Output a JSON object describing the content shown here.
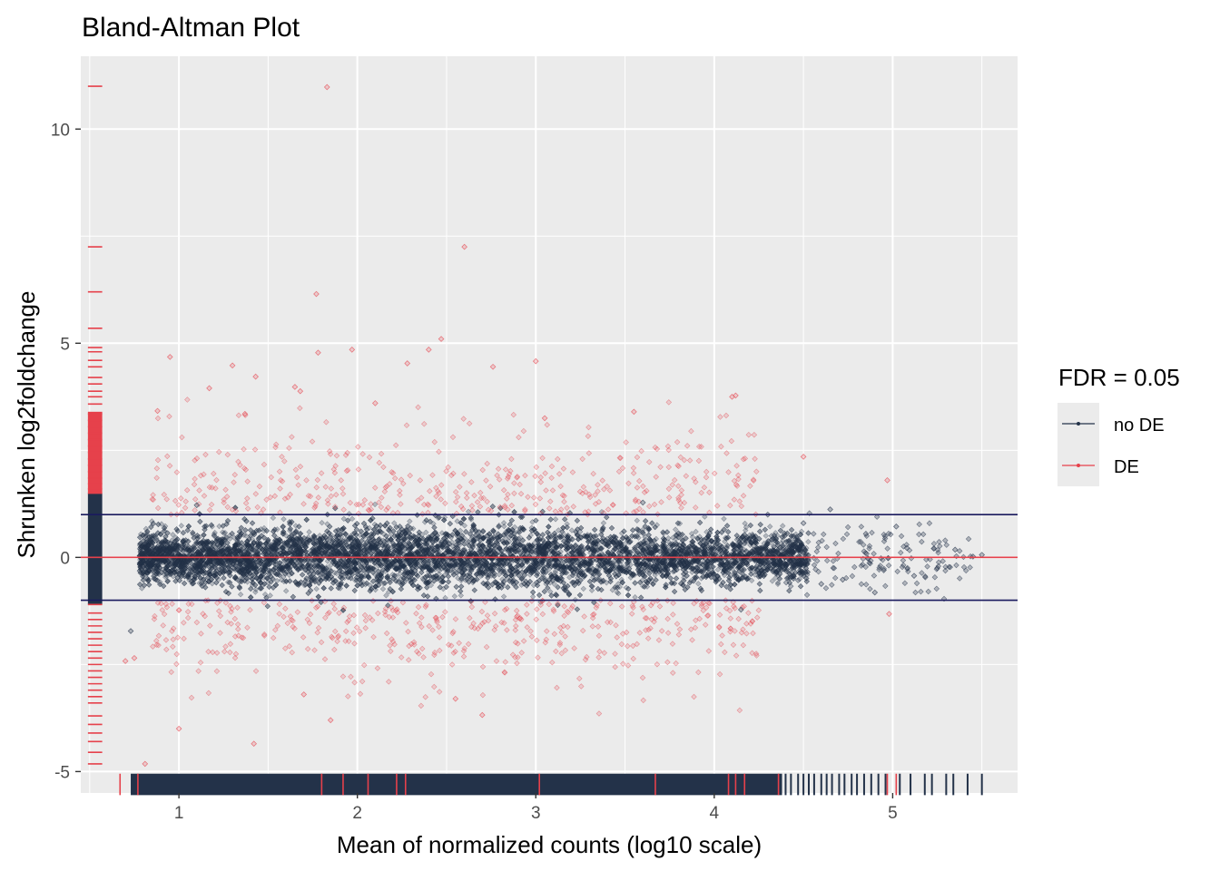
{
  "chart_data": {
    "type": "scatter",
    "title": "Bland-Altman Plot",
    "xlabel": "Mean of normalized counts (log10 scale)",
    "ylabel": "Shrunken log2foldchange",
    "xlim": [
      0.45,
      5.7
    ],
    "ylim": [
      -5.5,
      11.7
    ],
    "x_ticks": [
      1,
      2,
      3,
      4,
      5
    ],
    "x_tick_labels": [
      "1",
      "2",
      "3",
      "4",
      "5"
    ],
    "y_ticks": [
      -5,
      0,
      5,
      10
    ],
    "y_tick_labels": [
      "-5",
      "0",
      "5",
      "10"
    ],
    "grid": true,
    "reference_lines": [
      {
        "y": 1,
        "color": "#1a1a5e"
      },
      {
        "y": -1,
        "color": "#1a1a5e"
      },
      {
        "y": 0,
        "color": "#e6414b"
      }
    ],
    "legend": {
      "title": "FDR = 0.05",
      "position": "right",
      "entries": [
        {
          "label": "no DE",
          "color": "#233249"
        },
        {
          "label": "DE",
          "color": "#e6414b"
        }
      ]
    },
    "series": [
      {
        "name": "no DE",
        "color": "#233249",
        "notable_points": [
          [
            0.73,
            -1.72
          ],
          [
            0.78,
            0.04
          ],
          [
            1.1,
            1.22
          ],
          [
            3.6,
            1.28
          ],
          [
            4.3,
            1.0
          ],
          [
            4.65,
            1.12
          ],
          [
            4.6,
            -0.62
          ],
          [
            4.72,
            -0.52
          ],
          [
            4.9,
            -0.82
          ],
          [
            5.02,
            0.72
          ],
          [
            5.08,
            0.22
          ],
          [
            5.12,
            -0.43
          ],
          [
            5.25,
            -0.25
          ],
          [
            5.35,
            0.18
          ],
          [
            5.45,
            0.02
          ],
          [
            5.5,
            0.06
          ],
          [
            4.5,
            0.8
          ],
          [
            4.85,
            0.55
          ],
          [
            4.95,
            -0.3
          ],
          [
            4.15,
            -1.22
          ]
        ]
      },
      {
        "name": "DE",
        "color": "#e6414b",
        "notable_points": [
          [
            1.83,
            10.98
          ],
          [
            2.6,
            7.25
          ],
          [
            1.77,
            6.15
          ],
          [
            1.78,
            4.78
          ],
          [
            2.47,
            5.1
          ],
          [
            2.4,
            4.85
          ],
          [
            3.0,
            4.58
          ],
          [
            1.3,
            4.48
          ],
          [
            1.43,
            4.22
          ],
          [
            0.95,
            4.68
          ],
          [
            4.1,
            3.75
          ],
          [
            4.12,
            3.78
          ],
          [
            2.76,
            4.45
          ],
          [
            2.28,
            4.53
          ],
          [
            1.97,
            4.85
          ],
          [
            1.65,
            3.98
          ],
          [
            1.68,
            3.88
          ],
          [
            0.88,
            3.42
          ],
          [
            1.37,
            3.35
          ],
          [
            0.81,
            -4.82
          ],
          [
            1.42,
            -4.35
          ],
          [
            1.0,
            -4.0
          ],
          [
            1.7,
            -3.2
          ],
          [
            2.7,
            -3.68
          ],
          [
            1.85,
            -3.8
          ],
          [
            0.7,
            -2.42
          ],
          [
            2.55,
            -3.3
          ],
          [
            3.55,
            3.4
          ],
          [
            3.05,
            3.25
          ],
          [
            2.1,
            3.6
          ],
          [
            4.5,
            2.35
          ],
          [
            4.97,
            1.8
          ],
          [
            1.17,
            3.95
          ],
          [
            4.98,
            -1.32
          ],
          [
            0.75,
            -2.35
          ]
        ]
      }
    ],
    "y_rug_DE": [
      11.0,
      7.25,
      6.2,
      5.35,
      4.9,
      4.8,
      4.6,
      4.45,
      4.2,
      4.05,
      3.88,
      3.75,
      3.58,
      3.35,
      3.2,
      3.05,
      2.9,
      2.75,
      2.6,
      2.45,
      2.3,
      2.15,
      2.0,
      1.85,
      1.72,
      1.6,
      1.5,
      -1.1,
      -1.3,
      -1.45,
      -1.6,
      -1.75,
      -1.9,
      -2.05,
      -2.2,
      -2.35,
      -2.5,
      -2.65,
      -2.8,
      -2.95,
      -3.1,
      -3.25,
      -3.4,
      -3.7,
      -3.9,
      -4.1,
      -4.3,
      -4.55,
      -4.82
    ],
    "x_rug_DE": [
      0.67,
      0.77,
      1.8,
      1.92,
      2.06,
      2.22,
      2.27,
      3.02,
      3.67,
      4.08,
      4.12,
      4.17,
      4.36,
      4.97,
      5.02
    ],
    "x_rug_sparse_noDE": [
      4.4,
      4.43,
      4.47,
      4.5,
      4.53,
      4.56,
      4.6,
      4.63,
      4.66,
      4.7,
      4.73,
      4.77,
      4.8,
      4.84,
      4.88,
      4.92,
      4.96,
      5.04,
      5.1,
      5.18,
      5.22,
      5.3,
      5.34,
      5.42,
      5.5
    ]
  }
}
